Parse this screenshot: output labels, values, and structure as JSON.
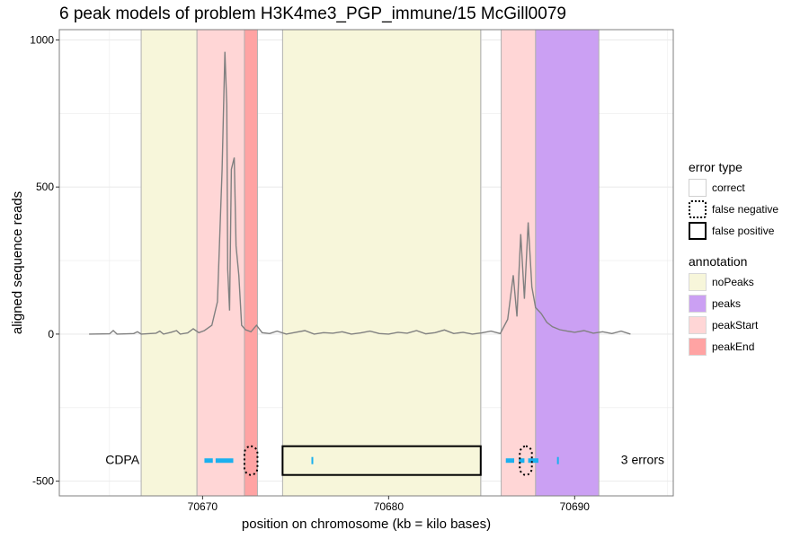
{
  "chart_data": {
    "type": "line",
    "title": "6 peak models of problem H3K4me3_PGP_immune/15 McGill0079",
    "xlabel": "position on chromosome (kb = kilo bases)",
    "ylabel": "aligned sequence reads",
    "xlim": [
      62.3,
      95.3
    ],
    "ylim": [
      -550,
      1035
    ],
    "x_ticks": [
      {
        "value": 70.0,
        "label": "70670"
      },
      {
        "value": 80.0,
        "label": "70680"
      },
      {
        "value": 90.0,
        "label": "70690"
      }
    ],
    "y_ticks": [
      {
        "value": -500,
        "label": "-500"
      },
      {
        "value": 0,
        "label": "0"
      },
      {
        "value": 500,
        "label": "500"
      },
      {
        "value": 1000,
        "label": "1000"
      }
    ],
    "grid": true,
    "x_offset_note": "",
    "annotations": [
      {
        "type": "noPeaks",
        "start": 66.7,
        "end": 69.7
      },
      {
        "type": "peakStart",
        "start": 69.7,
        "end": 72.5
      },
      {
        "type": "peakEnd",
        "start": 72.25,
        "end": 72.95
      },
      {
        "type": "noPeaks",
        "start": 74.3,
        "end": 84.95
      },
      {
        "type": "peakStart",
        "start": 86.05,
        "end": 87.9
      },
      {
        "type": "peaks",
        "start": 87.9,
        "end": 91.3
      }
    ],
    "coverage": [
      [
        63.9,
        0
      ],
      [
        65.0,
        1
      ],
      [
        65.2,
        12
      ],
      [
        65.4,
        0
      ],
      [
        66.3,
        2
      ],
      [
        66.5,
        8
      ],
      [
        66.7,
        0
      ],
      [
        67.5,
        3
      ],
      [
        67.7,
        10
      ],
      [
        67.9,
        0
      ],
      [
        68.3,
        6
      ],
      [
        68.6,
        12
      ],
      [
        68.8,
        0
      ],
      [
        69.2,
        4
      ],
      [
        69.5,
        18
      ],
      [
        69.8,
        5
      ],
      [
        70.1,
        12
      ],
      [
        70.5,
        30
      ],
      [
        70.8,
        110
      ],
      [
        71.05,
        560
      ],
      [
        71.2,
        960
      ],
      [
        71.3,
        780
      ],
      [
        71.35,
        220
      ],
      [
        71.45,
        80
      ],
      [
        71.55,
        560
      ],
      [
        71.7,
        600
      ],
      [
        71.8,
        300
      ],
      [
        71.95,
        200
      ],
      [
        72.1,
        30
      ],
      [
        72.3,
        15
      ],
      [
        72.6,
        8
      ],
      [
        72.9,
        30
      ],
      [
        73.2,
        5
      ],
      [
        73.6,
        2
      ],
      [
        74.0,
        10
      ],
      [
        74.5,
        0
      ],
      [
        75.0,
        6
      ],
      [
        75.5,
        12
      ],
      [
        76.0,
        0
      ],
      [
        76.5,
        5
      ],
      [
        77.0,
        3
      ],
      [
        77.5,
        8
      ],
      [
        78.0,
        0
      ],
      [
        78.5,
        4
      ],
      [
        79.0,
        10
      ],
      [
        79.5,
        2
      ],
      [
        80.0,
        0
      ],
      [
        80.5,
        6
      ],
      [
        81.0,
        3
      ],
      [
        81.5,
        12
      ],
      [
        82.0,
        1
      ],
      [
        82.5,
        5
      ],
      [
        83.0,
        14
      ],
      [
        83.5,
        2
      ],
      [
        84.0,
        6
      ],
      [
        84.5,
        0
      ],
      [
        85.0,
        4
      ],
      [
        85.5,
        10
      ],
      [
        86.0,
        2
      ],
      [
        86.4,
        50
      ],
      [
        86.7,
        200
      ],
      [
        86.9,
        60
      ],
      [
        87.1,
        340
      ],
      [
        87.3,
        120
      ],
      [
        87.5,
        380
      ],
      [
        87.7,
        160
      ],
      [
        87.9,
        90
      ],
      [
        88.2,
        70
      ],
      [
        88.5,
        40
      ],
      [
        88.8,
        25
      ],
      [
        89.2,
        15
      ],
      [
        89.6,
        10
      ],
      [
        90.0,
        6
      ],
      [
        90.5,
        12
      ],
      [
        91.0,
        3
      ],
      [
        91.5,
        8
      ],
      [
        92.0,
        2
      ],
      [
        92.5,
        10
      ],
      [
        93.0,
        0
      ]
    ],
    "models": [
      {
        "name": "CDPA",
        "errors_label": "3 errors",
        "y": -430,
        "segments": [
          [
            70.1,
            70.55
          ],
          [
            70.7,
            71.65
          ],
          [
            86.3,
            86.75
          ],
          [
            87.0,
            87.3
          ],
          [
            87.5,
            88.05
          ]
        ],
        "ticks": [
          75.9,
          89.1
        ],
        "errors": [
          {
            "type": "false negative",
            "start": 72.25,
            "end": 72.95
          },
          {
            "type": "false positive",
            "start": 74.3,
            "end": 84.95
          },
          {
            "type": "false negative",
            "start": 87.05,
            "end": 87.7
          }
        ]
      }
    ]
  },
  "colors": {
    "noPeaks": "#f7f6da",
    "peaks": "#cba0f3",
    "peakStart": "#ffd6d6",
    "peakEnd": "#ffa3a3",
    "coverage_line": "#808080",
    "model_segment": "#1ab0ef",
    "panel_border": "#7f7f7f",
    "grid": "#ebebeb"
  },
  "legend": {
    "error_type": {
      "title": "error type",
      "items": [
        {
          "label": "correct",
          "style": "solid-light"
        },
        {
          "label": "false negative",
          "style": "dotted"
        },
        {
          "label": "false positive",
          "style": "solid-thick"
        }
      ]
    },
    "annotation": {
      "title": "annotation",
      "items": [
        {
          "label": "noPeaks",
          "key": "noPeaks"
        },
        {
          "label": "peaks",
          "key": "peaks"
        },
        {
          "label": "peakStart",
          "key": "peakStart"
        },
        {
          "label": "peakEnd",
          "key": "peakEnd"
        }
      ]
    }
  }
}
